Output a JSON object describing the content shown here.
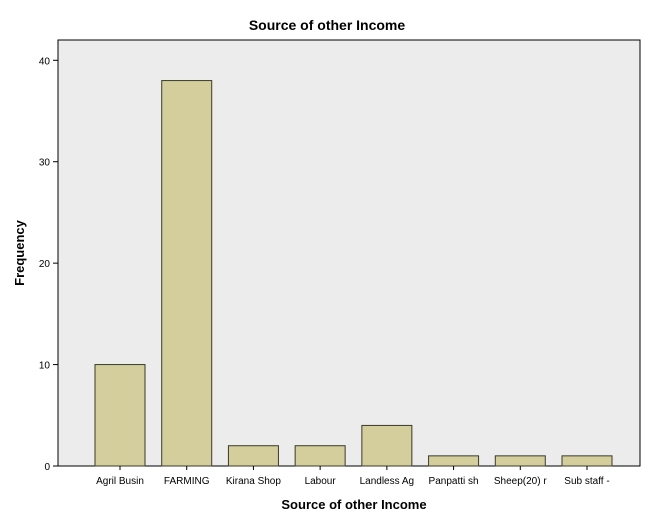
{
  "chart_data": {
    "type": "bar",
    "title": "Source of other Income",
    "xlabel": "Source of other Income",
    "ylabel": "Frequency",
    "categories": [
      "Agril Busin",
      "FARMING",
      "Kirana Shop",
      "Labour",
      "Landless Ag",
      "Panpatti sh",
      "Sheep(20) r",
      "Sub staff -"
    ],
    "values": [
      10,
      38,
      2,
      2,
      4,
      1,
      1,
      1
    ],
    "ylim": [
      0,
      42
    ],
    "yticks": [
      0,
      10,
      20,
      30,
      40
    ],
    "grid": false,
    "legend": "none",
    "colors": {
      "bar_fill": "#d4ce9c",
      "bar_stroke": "#3a3a2a",
      "plot_background": "#ececec",
      "axis": "#000000"
    }
  }
}
